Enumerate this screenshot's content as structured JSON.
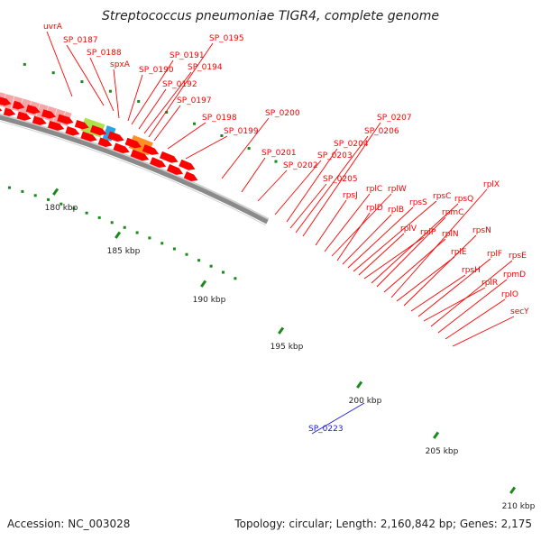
{
  "title": "Streptococcus pneumoniae TIGR4, complete genome",
  "footer": {
    "accession": "Accession: NC_003028",
    "summary": "Topology: circular; Length: 2,160,842 bp; Genes: 2,175"
  },
  "colors": {
    "backbone": "#8a8a8a",
    "cds_forward": "#ff0000",
    "cds_pink": "#f4a0a0",
    "tick": "#1a8a1a",
    "label_forward": "#ff0000",
    "label_reverse": "#1a1ad0"
  },
  "kbp_ticks": [
    "180 kbp",
    "185 kbp",
    "190 kbp",
    "195 kbp",
    "200 kbp",
    "205 kbp",
    "210 kbp"
  ],
  "gene_labels": [
    {
      "text": "uvrA",
      "color": "#ff0000"
    },
    {
      "text": "SP_0187",
      "color": "#ff0000"
    },
    {
      "text": "SP_0188",
      "color": "#ff0000"
    },
    {
      "text": "spxA",
      "color": "#ff0000"
    },
    {
      "text": "SP_0190",
      "color": "#ff0000"
    },
    {
      "text": "SP_0191",
      "color": "#ff0000"
    },
    {
      "text": "SP_0192",
      "color": "#ff0000"
    },
    {
      "text": "SP_0194",
      "color": "#ff0000"
    },
    {
      "text": "SP_0195",
      "color": "#ff0000"
    },
    {
      "text": "SP_0197",
      "color": "#ff0000"
    },
    {
      "text": "SP_0198",
      "color": "#ff0000"
    },
    {
      "text": "SP_0199",
      "color": "#ff0000"
    },
    {
      "text": "SP_0200",
      "color": "#ff0000"
    },
    {
      "text": "SP_0201",
      "color": "#ff0000"
    },
    {
      "text": "SP_0202",
      "color": "#ff0000"
    },
    {
      "text": "SP_0203",
      "color": "#ff0000"
    },
    {
      "text": "SP_0204",
      "color": "#ff0000"
    },
    {
      "text": "SP_0205",
      "color": "#ff0000"
    },
    {
      "text": "SP_0206",
      "color": "#ff0000"
    },
    {
      "text": "SP_0207",
      "color": "#ff0000"
    },
    {
      "text": "rpsJ",
      "color": "#ff0000"
    },
    {
      "text": "rplC",
      "color": "#ff0000"
    },
    {
      "text": "rplW",
      "color": "#ff0000"
    },
    {
      "text": "rplD",
      "color": "#ff0000"
    },
    {
      "text": "rplB",
      "color": "#ff0000"
    },
    {
      "text": "rpsS",
      "color": "#ff0000"
    },
    {
      "text": "rpsC",
      "color": "#ff0000"
    },
    {
      "text": "rplV",
      "color": "#ff0000"
    },
    {
      "text": "rplP",
      "color": "#ff0000"
    },
    {
      "text": "rpsQ",
      "color": "#ff0000"
    },
    {
      "text": "rpmC",
      "color": "#ff0000"
    },
    {
      "text": "rplN",
      "color": "#ff0000"
    },
    {
      "text": "rplX",
      "color": "#ff0000"
    },
    {
      "text": "rplE",
      "color": "#ff0000"
    },
    {
      "text": "rpsN",
      "color": "#ff0000"
    },
    {
      "text": "rpsH",
      "color": "#ff0000"
    },
    {
      "text": "rplF",
      "color": "#ff0000"
    },
    {
      "text": "rplR",
      "color": "#ff0000"
    },
    {
      "text": "rpsE",
      "color": "#ff0000"
    },
    {
      "text": "rpmD",
      "color": "#ff0000"
    },
    {
      "text": "rplO",
      "color": "#ff0000"
    },
    {
      "text": "secY",
      "color": "#ff0000"
    },
    {
      "text": "SP_0223",
      "color": "#1a1ad0"
    }
  ],
  "feature_blocks": [
    {
      "color": "#ff1fa8"
    },
    {
      "color": "#5a8ad0"
    },
    {
      "color": "#3a3a7a"
    },
    {
      "color": "#8a8a8a"
    },
    {
      "color": "#6a6a6a"
    },
    {
      "color": "#0a0ae0"
    },
    {
      "color": "#8a6ad0"
    },
    {
      "color": "#1ab8e0"
    },
    {
      "color": "#c8c080"
    },
    {
      "color": "#f4a0a0"
    },
    {
      "color": "#a8e040"
    },
    {
      "color": "#1aa0e0"
    },
    {
      "color": "#ff8a1a"
    }
  ]
}
